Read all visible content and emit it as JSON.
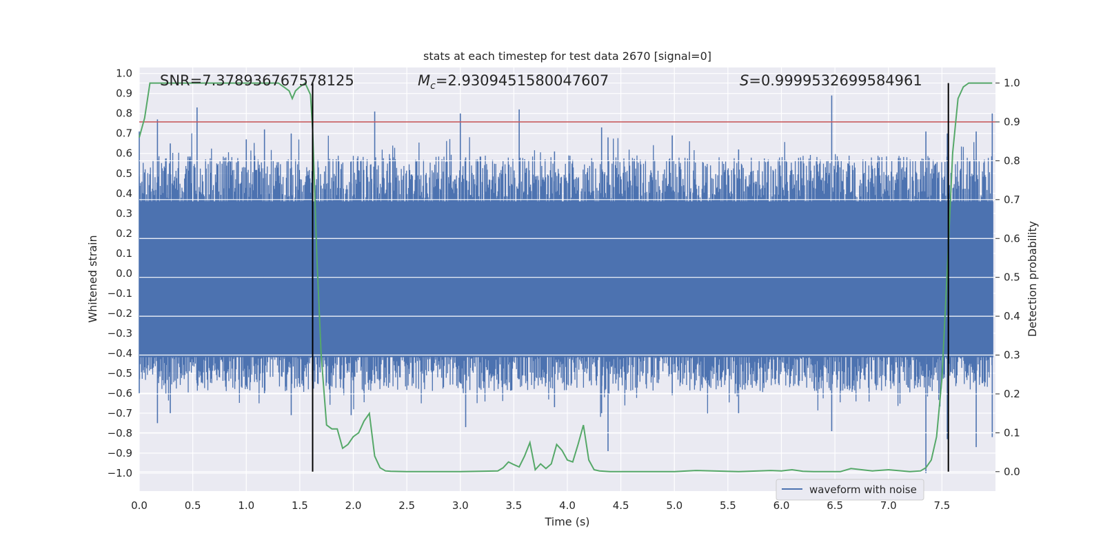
{
  "chart_data": {
    "type": "line",
    "title": "stats at each timestep for test data 2670 [signal=0]",
    "xlabel": "Time (s)",
    "ylabel": "Whitened strain",
    "y2label": "Detection probability",
    "xlim": [
      0.0,
      8.0
    ],
    "ylim": [
      -1.09,
      1.03
    ],
    "y2lim": [
      -0.05,
      1.04
    ],
    "x_ticks": [
      "0.0",
      "0.5",
      "1.0",
      "1.5",
      "2.0",
      "2.5",
      "3.0",
      "3.5",
      "4.0",
      "4.5",
      "5.0",
      "5.5",
      "6.0",
      "6.5",
      "7.0",
      "7.5"
    ],
    "y_ticks": [
      "1.0",
      "0.9",
      "0.8",
      "0.7",
      "0.6",
      "0.5",
      "0.4",
      "0.3",
      "0.2",
      "0.1",
      "0.0",
      "−0.1",
      "−0.2",
      "−0.3",
      "−0.4",
      "−0.5",
      "−0.6",
      "−0.7",
      "−0.8",
      "−0.9",
      "−1.0"
    ],
    "y2_ticks": [
      "1.0",
      "0.9",
      "0.8",
      "0.7",
      "0.6",
      "0.5",
      "0.4",
      "0.3",
      "0.2",
      "0.1",
      "0.0"
    ],
    "grid": true,
    "legend_placement": "lower-right",
    "annotations": {
      "snr": "SNR=7.378936767578125",
      "mc_symbol": "M",
      "mc_subscript": "c",
      "mc_value": "=2.9309451580047607",
      "s_symbol": "S",
      "s_value": "=0.9999532699584961"
    },
    "threshold": {
      "y2": 0.9,
      "color": "#c44e52"
    },
    "vlines": [
      1.62,
      7.56
    ],
    "vline_y2_range": [
      0.0,
      1.0
    ],
    "series": [
      {
        "name": "waveform with noise",
        "color": "#4c72b0",
        "axis": "left",
        "band_low": -0.42,
        "band_high": 0.36,
        "spikes": [
          [
            0.0,
            0.71,
            -0.6
          ],
          [
            0.54,
            0.83,
            -0.55
          ],
          [
            0.17,
            0.77,
            -0.75
          ],
          [
            0.29,
            0.65,
            -0.7
          ],
          [
            1.0,
            0.67,
            -0.56
          ],
          [
            1.17,
            0.72,
            -0.6
          ],
          [
            1.42,
            0.7,
            -0.71
          ],
          [
            1.62,
            0.67,
            -0.6
          ],
          [
            1.98,
            0.56,
            -0.71
          ],
          [
            2.2,
            0.81,
            -0.55
          ],
          [
            3.0,
            0.8,
            -0.55
          ],
          [
            3.05,
            0.58,
            -0.77
          ],
          [
            3.55,
            0.82,
            -0.53
          ],
          [
            3.88,
            0.61,
            -0.67
          ],
          [
            4.32,
            0.73,
            -0.7
          ],
          [
            4.38,
            0.68,
            -0.89
          ],
          [
            4.98,
            0.69,
            -0.61
          ],
          [
            5.6,
            0.62,
            -0.7
          ],
          [
            6.47,
            0.89,
            -0.79
          ],
          [
            7.35,
            0.71,
            -1.0
          ],
          [
            7.55,
            0.7,
            -0.83
          ],
          [
            7.82,
            0.71,
            -0.87
          ],
          [
            7.97,
            0.8,
            -0.82
          ]
        ]
      },
      {
        "name": "Detection probability",
        "color": "#55a868",
        "axis": "right",
        "x": [
          0.0,
          0.05,
          0.1,
          0.3,
          0.5,
          0.8,
          1.0,
          1.2,
          1.3,
          1.35,
          1.4,
          1.43,
          1.46,
          1.5,
          1.55,
          1.6,
          1.62,
          1.66,
          1.7,
          1.75,
          1.8,
          1.85,
          1.9,
          1.95,
          2.0,
          2.05,
          2.1,
          2.15,
          2.2,
          2.25,
          2.3,
          2.35,
          2.5,
          3.0,
          3.35,
          3.4,
          3.45,
          3.5,
          3.55,
          3.6,
          3.65,
          3.7,
          3.75,
          3.8,
          3.85,
          3.9,
          3.95,
          4.0,
          4.05,
          4.1,
          4.15,
          4.2,
          4.25,
          4.3,
          4.35,
          4.4,
          4.45,
          4.55,
          5.0,
          5.2,
          5.6,
          5.9,
          6.0,
          6.1,
          6.2,
          6.3,
          6.55,
          6.65,
          6.85,
          7.0,
          7.2,
          7.3,
          7.35,
          7.4,
          7.45,
          7.5,
          7.55,
          7.6,
          7.65,
          7.7,
          7.75,
          7.8,
          7.9,
          7.97
        ],
        "y": [
          0.86,
          0.91,
          1.0,
          1.0,
          1.0,
          1.0,
          1.0,
          1.0,
          1.0,
          0.99,
          0.98,
          0.96,
          0.98,
          0.99,
          1.0,
          0.97,
          0.88,
          0.55,
          0.3,
          0.12,
          0.11,
          0.11,
          0.06,
          0.07,
          0.09,
          0.1,
          0.13,
          0.15,
          0.04,
          0.01,
          0.002,
          0.001,
          0.0,
          0.0,
          0.002,
          0.01,
          0.025,
          0.018,
          0.012,
          0.04,
          0.075,
          0.005,
          0.02,
          0.008,
          0.02,
          0.07,
          0.055,
          0.03,
          0.025,
          0.07,
          0.12,
          0.03,
          0.005,
          0.002,
          0.001,
          0.0,
          0.0,
          0.0,
          0.0,
          0.003,
          0.0,
          0.003,
          0.002,
          0.005,
          0.001,
          0.0,
          0.0,
          0.008,
          0.002,
          0.005,
          0.0,
          0.002,
          0.01,
          0.03,
          0.09,
          0.24,
          0.52,
          0.82,
          0.96,
          0.99,
          1.0,
          1.0,
          1.0,
          1.0
        ]
      }
    ]
  }
}
